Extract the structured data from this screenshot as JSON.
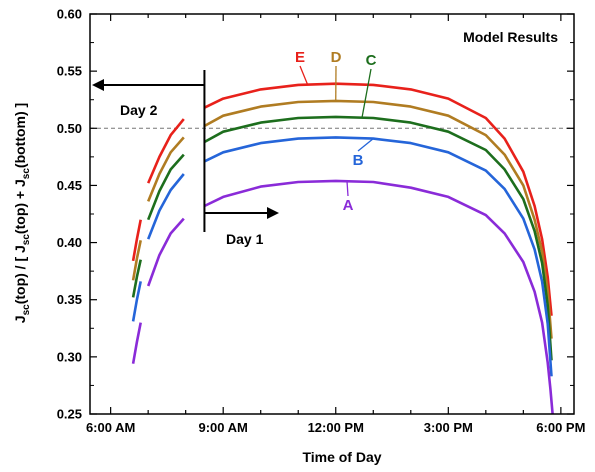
{
  "chart_data": {
    "type": "line",
    "xlabel": "Time of Day",
    "ylabel": "J_sc(top) / [ J_sc(top) + J_sc(bottom) ]",
    "ylabel_parts": {
      "J1": "J",
      "sub1": "sc",
      "mid1": "(top) / [ J",
      "sub2": "sc",
      "mid2": "(top) + J",
      "sub3": "sc",
      "end": "(bottom) ]"
    },
    "xlim": [
      5.45,
      18.35
    ],
    "ylim": [
      0.25,
      0.6
    ],
    "x_ticks": [
      {
        "value": 6,
        "label": "6:00 AM"
      },
      {
        "value": 9,
        "label": "9:00 AM"
      },
      {
        "value": 12,
        "label": "12:00 PM"
      },
      {
        "value": 15,
        "label": "3:00 PM"
      },
      {
        "value": 18,
        "label": "6:00 PM"
      }
    ],
    "y_ticks": [
      {
        "value": 0.25,
        "label": "0.25"
      },
      {
        "value": 0.3,
        "label": "0.30"
      },
      {
        "value": 0.35,
        "label": "0.35"
      },
      {
        "value": 0.4,
        "label": "0.40"
      },
      {
        "value": 0.45,
        "label": "0.45"
      },
      {
        "value": 0.5,
        "label": "0.50"
      },
      {
        "value": 0.55,
        "label": "0.55"
      },
      {
        "value": 0.6,
        "label": "0.60"
      }
    ],
    "reference_line": {
      "y": 0.5,
      "style": "dashed"
    },
    "annotations": {
      "model_results": "Model Results",
      "day1": "Day 1",
      "day2": "Day 2",
      "divider_time": 8.5
    },
    "series": [
      {
        "name": "E",
        "color": "#e8211b",
        "segments": [
          [
            [
              6.6,
              0.384
            ],
            [
              6.7,
              0.403
            ],
            [
              6.8,
              0.42
            ]
          ],
          [
            [
              7.0,
              0.452
            ],
            [
              7.3,
              0.475
            ],
            [
              7.6,
              0.494
            ],
            [
              7.95,
              0.508
            ]
          ],
          [
            [
              8.5,
              0.518
            ],
            [
              9.0,
              0.526
            ],
            [
              10.0,
              0.534
            ],
            [
              11.0,
              0.538
            ],
            [
              12.0,
              0.539
            ],
            [
              13.0,
              0.538
            ],
            [
              14.0,
              0.534
            ],
            [
              15.0,
              0.526
            ],
            [
              16.0,
              0.509
            ],
            [
              16.5,
              0.491
            ],
            [
              17.0,
              0.462
            ],
            [
              17.3,
              0.432
            ],
            [
              17.5,
              0.403
            ],
            [
              17.65,
              0.37
            ],
            [
              17.75,
              0.336
            ]
          ]
        ]
      },
      {
        "name": "D",
        "color": "#b07c22",
        "segments": [
          [
            [
              6.6,
              0.367
            ],
            [
              6.7,
              0.386
            ],
            [
              6.8,
              0.402
            ]
          ],
          [
            [
              7.0,
              0.436
            ],
            [
              7.3,
              0.46
            ],
            [
              7.6,
              0.479
            ],
            [
              7.95,
              0.492
            ]
          ],
          [
            [
              8.5,
              0.502
            ],
            [
              9.0,
              0.511
            ],
            [
              10.0,
              0.519
            ],
            [
              11.0,
              0.523
            ],
            [
              12.0,
              0.524
            ],
            [
              13.0,
              0.523
            ],
            [
              14.0,
              0.519
            ],
            [
              15.0,
              0.511
            ],
            [
              16.0,
              0.494
            ],
            [
              16.5,
              0.477
            ],
            [
              17.0,
              0.45
            ],
            [
              17.3,
              0.42
            ],
            [
              17.5,
              0.392
            ],
            [
              17.65,
              0.358
            ],
            [
              17.75,
              0.316
            ]
          ]
        ]
      },
      {
        "name": "C",
        "color": "#1d6e1d",
        "segments": [
          [
            [
              6.6,
              0.352
            ],
            [
              6.7,
              0.37
            ],
            [
              6.8,
              0.385
            ]
          ],
          [
            [
              7.0,
              0.42
            ],
            [
              7.3,
              0.445
            ],
            [
              7.6,
              0.464
            ],
            [
              7.95,
              0.477
            ]
          ],
          [
            [
              8.5,
              0.488
            ],
            [
              9.0,
              0.497
            ],
            [
              10.0,
              0.505
            ],
            [
              11.0,
              0.509
            ],
            [
              12.0,
              0.51
            ],
            [
              13.0,
              0.509
            ],
            [
              14.0,
              0.505
            ],
            [
              15.0,
              0.497
            ],
            [
              16.0,
              0.481
            ],
            [
              16.5,
              0.464
            ],
            [
              17.0,
              0.438
            ],
            [
              17.3,
              0.41
            ],
            [
              17.5,
              0.382
            ],
            [
              17.65,
              0.345
            ],
            [
              17.75,
              0.297
            ]
          ]
        ]
      },
      {
        "name": "B",
        "color": "#2565d9",
        "segments": [
          [
            [
              6.6,
              0.331
            ],
            [
              6.7,
              0.35
            ],
            [
              6.8,
              0.366
            ]
          ],
          [
            [
              7.0,
              0.403
            ],
            [
              7.3,
              0.428
            ],
            [
              7.6,
              0.446
            ],
            [
              7.95,
              0.46
            ]
          ],
          [
            [
              8.5,
              0.471
            ],
            [
              9.0,
              0.479
            ],
            [
              10.0,
              0.487
            ],
            [
              11.0,
              0.491
            ],
            [
              12.0,
              0.492
            ],
            [
              13.0,
              0.491
            ],
            [
              14.0,
              0.487
            ],
            [
              15.0,
              0.479
            ],
            [
              16.0,
              0.463
            ],
            [
              16.5,
              0.447
            ],
            [
              17.0,
              0.421
            ],
            [
              17.3,
              0.394
            ],
            [
              17.5,
              0.366
            ],
            [
              17.65,
              0.329
            ],
            [
              17.75,
              0.283
            ]
          ]
        ]
      },
      {
        "name": "A",
        "color": "#8a2bd8",
        "segments": [
          [
            [
              6.6,
              0.294
            ],
            [
              6.7,
              0.313
            ],
            [
              6.8,
              0.33
            ]
          ],
          [
            [
              7.0,
              0.362
            ],
            [
              7.3,
              0.389
            ],
            [
              7.6,
              0.408
            ],
            [
              7.95,
              0.421
            ]
          ],
          [
            [
              8.5,
              0.432
            ],
            [
              9.0,
              0.44
            ],
            [
              10.0,
              0.449
            ],
            [
              11.0,
              0.453
            ],
            [
              12.0,
              0.454
            ],
            [
              13.0,
              0.453
            ],
            [
              14.0,
              0.448
            ],
            [
              15.0,
              0.44
            ],
            [
              16.0,
              0.424
            ],
            [
              16.5,
              0.408
            ],
            [
              17.0,
              0.383
            ],
            [
              17.3,
              0.357
            ],
            [
              17.5,
              0.33
            ],
            [
              17.65,
              0.295
            ],
            [
              17.72,
              0.272
            ],
            [
              17.78,
              0.25
            ]
          ]
        ]
      }
    ]
  }
}
